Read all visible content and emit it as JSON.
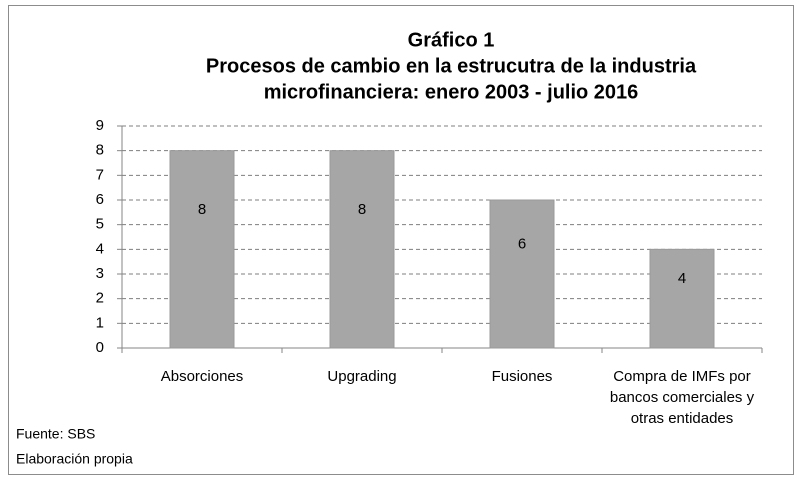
{
  "chart_data": {
    "type": "bar",
    "title": [
      "Gráfico  1",
      "Procesos de cambio en la estrucutra de la industria",
      "microfinanciera: enero 2003 - julio 2016"
    ],
    "categories": [
      "Absorciones",
      "Upgrading",
      "Fusiones",
      "Compra de IMFs por bancos comerciales y otras entidades"
    ],
    "values": [
      8,
      8,
      6,
      4
    ],
    "color": "#a6a6a6",
    "ylim": [
      0,
      9
    ],
    "yticks": [
      0,
      1,
      2,
      3,
      4,
      5,
      6,
      7,
      8,
      9
    ],
    "grid": true,
    "notes": [
      "Fuente: SBS",
      "Elaboración propia"
    ]
  }
}
